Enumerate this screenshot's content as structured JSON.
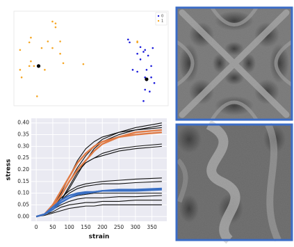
{
  "chart_data": [
    {
      "type": "scatter",
      "xlim": [
        0,
        100
      ],
      "ylim": [
        0,
        100
      ],
      "legend": "upper right",
      "series": [
        {
          "name": "0",
          "color": "#1a1adb",
          "x": [
            74,
            75,
            82,
            85,
            84,
            87,
            82,
            89,
            86,
            77,
            80,
            85,
            89,
            86,
            85,
            88,
            84,
            90,
            80,
            91
          ],
          "values": [
            70,
            67,
            62,
            59,
            57,
            53,
            49,
            42,
            38,
            38,
            36,
            30,
            30,
            27,
            17,
            15,
            5,
            61,
            55,
            24
          ]
        },
        {
          "name": "1",
          "color": "#f5a623",
          "x": [
            11,
            18,
            4,
            10,
            13,
            25,
            27,
            27,
            30,
            25,
            22,
            20,
            11,
            10,
            4,
            5,
            32,
            30,
            15,
            45,
            80,
            80
          ],
          "values": [
            72,
            61,
            59,
            42,
            42,
            89,
            87,
            83,
            68,
            61,
            68,
            38,
            47,
            67,
            38,
            30,
            45,
            55,
            10,
            44,
            68,
            67
          ]
        },
        {
          "color": "#000000",
          "x": [
            16,
            86
          ],
          "values": [
            42,
            28
          ]
        }
      ]
    },
    {
      "type": "line",
      "x_label": "strain",
      "y_label": "stress",
      "xlim": [
        -15,
        395
      ],
      "ylim": [
        -0.02,
        0.42
      ],
      "xticks": [
        0,
        50,
        100,
        150,
        200,
        250,
        300,
        350
      ],
      "yticks": [
        {
          "value": 0,
          "label": "0.00"
        },
        {
          "value": 0.05,
          "label": "0.05"
        },
        {
          "value": 0.1,
          "label": "0.10"
        },
        {
          "value": 0.15,
          "label": "0.15"
        },
        {
          "value": 0.2,
          "label": "0.20"
        },
        {
          "value": 0.25,
          "label": "0.25"
        },
        {
          "value": 0.3,
          "label": "0.30"
        },
        {
          "value": 0.35,
          "label": "0.35"
        },
        {
          "value": 0.4,
          "label": "0.40"
        }
      ],
      "grid": true,
      "x": [
        0,
        25,
        50,
        75,
        100,
        125,
        150,
        175,
        200,
        250,
        300,
        380
      ],
      "series": [
        {
          "color": "#111111",
          "values": [
            0,
            0.01,
            0.04,
            0.09,
            0.15,
            0.21,
            0.26,
            0.3,
            0.33,
            0.36,
            0.38,
            0.4
          ]
        },
        {
          "color": "#111111",
          "values": [
            0,
            0.01,
            0.03,
            0.07,
            0.12,
            0.18,
            0.24,
            0.29,
            0.32,
            0.35,
            0.37,
            0.39
          ]
        },
        {
          "color": "#111111",
          "values": [
            0,
            0.01,
            0.04,
            0.1,
            0.17,
            0.24,
            0.29,
            0.32,
            0.34,
            0.36,
            0.37,
            0.38
          ]
        },
        {
          "color": "#111111",
          "values": [
            0,
            0.01,
            0.03,
            0.07,
            0.13,
            0.19,
            0.23,
            0.25,
            0.27,
            0.29,
            0.3,
            0.31
          ]
        },
        {
          "color": "#111111",
          "values": [
            0,
            0.01,
            0.04,
            0.09,
            0.15,
            0.2,
            0.23,
            0.25,
            0.26,
            0.28,
            0.29,
            0.3
          ]
        },
        {
          "color": "#111111",
          "values": [
            0,
            0.01,
            0.04,
            0.08,
            0.11,
            0.13,
            0.14,
            0.145,
            0.15,
            0.155,
            0.16,
            0.165
          ]
        },
        {
          "color": "#111111",
          "values": [
            0,
            0.01,
            0.03,
            0.07,
            0.1,
            0.12,
            0.13,
            0.135,
            0.14,
            0.14,
            0.145,
            0.15
          ]
        },
        {
          "color": "#111111",
          "values": [
            0,
            0.01,
            0.03,
            0.06,
            0.08,
            0.09,
            0.095,
            0.1,
            0.1,
            0.1,
            0.1,
            0.1
          ]
        },
        {
          "color": "#111111",
          "values": [
            0,
            0.01,
            0.03,
            0.05,
            0.065,
            0.075,
            0.08,
            0.08,
            0.08,
            0.085,
            0.085,
            0.09
          ]
        },
        {
          "color": "#111111",
          "values": [
            0,
            0.01,
            0.02,
            0.04,
            0.05,
            0.055,
            0.06,
            0.06,
            0.065,
            0.065,
            0.07,
            0.07
          ]
        },
        {
          "color": "#111111",
          "values": [
            0,
            0.005,
            0.015,
            0.025,
            0.035,
            0.04,
            0.045,
            0.045,
            0.05,
            0.05,
            0.05,
            0.05
          ]
        },
        {
          "color": "#e07b45",
          "values": [
            0,
            0.01,
            0.04,
            0.09,
            0.15,
            0.2,
            0.24,
            0.28,
            0.31,
            0.34,
            0.36,
            0.37
          ]
        },
        {
          "color": "#e07b45",
          "values": [
            0,
            0.01,
            0.05,
            0.11,
            0.17,
            0.23,
            0.27,
            0.3,
            0.32,
            0.34,
            0.35,
            0.36
          ]
        },
        {
          "color": "#3a6fc4",
          "values": [
            0,
            0.01,
            0.03,
            0.06,
            0.08,
            0.095,
            0.1,
            0.105,
            0.11,
            0.115,
            0.115,
            0.12
          ]
        },
        {
          "color": "#3a6fc4",
          "values": [
            0,
            0.01,
            0.04,
            0.07,
            0.09,
            0.1,
            0.105,
            0.105,
            0.11,
            0.11,
            0.11,
            0.115
          ]
        }
      ]
    }
  ]
}
